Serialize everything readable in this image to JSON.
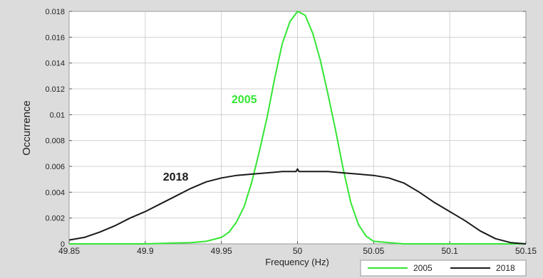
{
  "chart_data": {
    "type": "line",
    "xlabel": "Frequency (Hz)",
    "ylabel": "Occurrence",
    "xlim": [
      49.85,
      50.15
    ],
    "ylim": [
      0,
      0.018
    ],
    "x_ticks": [
      "49.85",
      "49.9",
      "49.95",
      "50",
      "50.05",
      "50.1",
      "50.15"
    ],
    "y_ticks": [
      "0",
      "0.002",
      "0.004",
      "0.006",
      "0.008",
      "0.01",
      "0.012",
      "0.014",
      "0.016",
      "0.018"
    ],
    "grid": true,
    "legend_position": "bottom-right",
    "series": [
      {
        "name": "2005",
        "color": "#33e633",
        "x": [
          49.85,
          49.9,
          49.93,
          49.94,
          49.95,
          49.955,
          49.96,
          49.965,
          49.97,
          49.975,
          49.98,
          49.985,
          49.99,
          49.995,
          50.0,
          50.005,
          50.01,
          50.015,
          50.02,
          50.025,
          50.03,
          50.035,
          50.04,
          50.045,
          50.05,
          50.06,
          50.07,
          50.15
        ],
        "y": [
          0.0,
          0.0,
          0.0001,
          0.0002,
          0.0005,
          0.0009,
          0.0017,
          0.0029,
          0.0048,
          0.0072,
          0.0098,
          0.0128,
          0.0155,
          0.0172,
          0.018,
          0.0177,
          0.0163,
          0.0142,
          0.0116,
          0.0088,
          0.0058,
          0.0032,
          0.0015,
          0.0006,
          0.0002,
          0.0001,
          0.0,
          0.0
        ]
      },
      {
        "name": "2018",
        "color": "#1a1a1a",
        "x": [
          49.85,
          49.86,
          49.87,
          49.88,
          49.89,
          49.9,
          49.91,
          49.92,
          49.93,
          49.94,
          49.95,
          49.96,
          49.97,
          49.98,
          49.99,
          49.999,
          50.0,
          50.001,
          50.01,
          50.02,
          50.03,
          50.04,
          50.05,
          50.06,
          50.07,
          50.08,
          50.09,
          50.1,
          50.11,
          50.12,
          50.13,
          50.14,
          50.15
        ],
        "y": [
          0.0003,
          0.0005,
          0.0009,
          0.0014,
          0.002,
          0.0025,
          0.0031,
          0.0037,
          0.0043,
          0.0048,
          0.0051,
          0.0053,
          0.0054,
          0.0055,
          0.0056,
          0.0056,
          0.0058,
          0.0056,
          0.0056,
          0.0056,
          0.0055,
          0.0054,
          0.0053,
          0.0051,
          0.0047,
          0.004,
          0.0032,
          0.0025,
          0.0018,
          0.001,
          0.0004,
          0.0001,
          0.0
        ]
      }
    ],
    "annotations": [
      {
        "text": "2005",
        "x": 49.965,
        "y": 0.0109,
        "color": "#33e633"
      },
      {
        "text": "2018",
        "x": 49.92,
        "y": 0.0049,
        "color": "#1a1a1a"
      }
    ]
  }
}
